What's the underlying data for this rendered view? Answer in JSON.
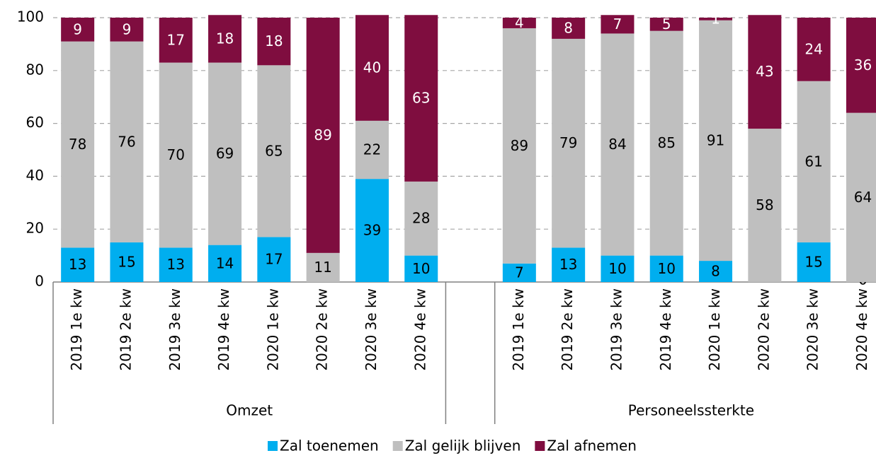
{
  "chart_data": {
    "type": "stacked-bar",
    "groups": [
      {
        "name": "Omzet",
        "categories": [
          "2019 1e kw",
          "2019 2e kw",
          "2019 3e kw",
          "2019 4e kw",
          "2020 1e kw",
          "2020 2e kw",
          "2020 3e kw",
          "2020 4e kw"
        ]
      },
      {
        "name": "Personeelssterkte",
        "categories": [
          "2019 1e kw",
          "2019 2e kw",
          "2019 3e kw",
          "2019 4e kw",
          "2020 1e kw",
          "2020 2e kw",
          "2020 3e kw",
          "2020 4e kw"
        ]
      }
    ],
    "series": [
      {
        "name": "Zal toenemen",
        "color": "#00aeef",
        "label_color": "#000000",
        "values": [
          13,
          15,
          13,
          14,
          17,
          0,
          39,
          10,
          7,
          13,
          10,
          10,
          8,
          0,
          15,
          0
        ],
        "value_labels": [
          13,
          15,
          13,
          14,
          17,
          null,
          39,
          10,
          7,
          13,
          10,
          10,
          8,
          null,
          15,
          0
        ]
      },
      {
        "name": "Zal gelijk blijven",
        "color": "#bfbfbf",
        "label_color": "#000000",
        "values": [
          78,
          76,
          70,
          69,
          65,
          11,
          22,
          28,
          89,
          79,
          84,
          85,
          91,
          58,
          61,
          64
        ]
      },
      {
        "name": "Zal afnemen",
        "color": "#7f0d3f",
        "label_color": "#ffffff",
        "values": [
          9,
          9,
          17,
          18,
          18,
          89,
          40,
          63,
          4,
          8,
          7,
          5,
          1,
          43,
          24,
          36
        ]
      }
    ],
    "ylim": [
      0,
      100
    ],
    "yticks": [
      0,
      20,
      40,
      60,
      80,
      100
    ],
    "grid": true,
    "legend": "bottom"
  }
}
